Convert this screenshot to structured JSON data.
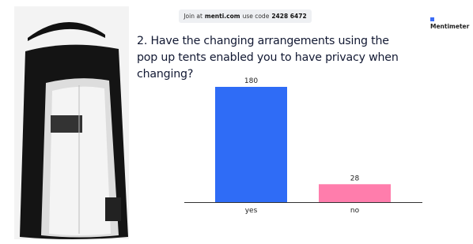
{
  "header": {
    "join": "Join at",
    "site": "menti.com",
    "code_label": "use code",
    "code": "2428 6472",
    "brand": "Mentimeter"
  },
  "chart_data": {
    "type": "bar",
    "title": "2. Have the changing arrangements using the pop up tents enabled you to have privacy when changing?",
    "categories": [
      "yes",
      "no"
    ],
    "values": [
      180,
      28
    ],
    "colors": [
      "#2f6cf6",
      "#ff7dac"
    ]
  }
}
